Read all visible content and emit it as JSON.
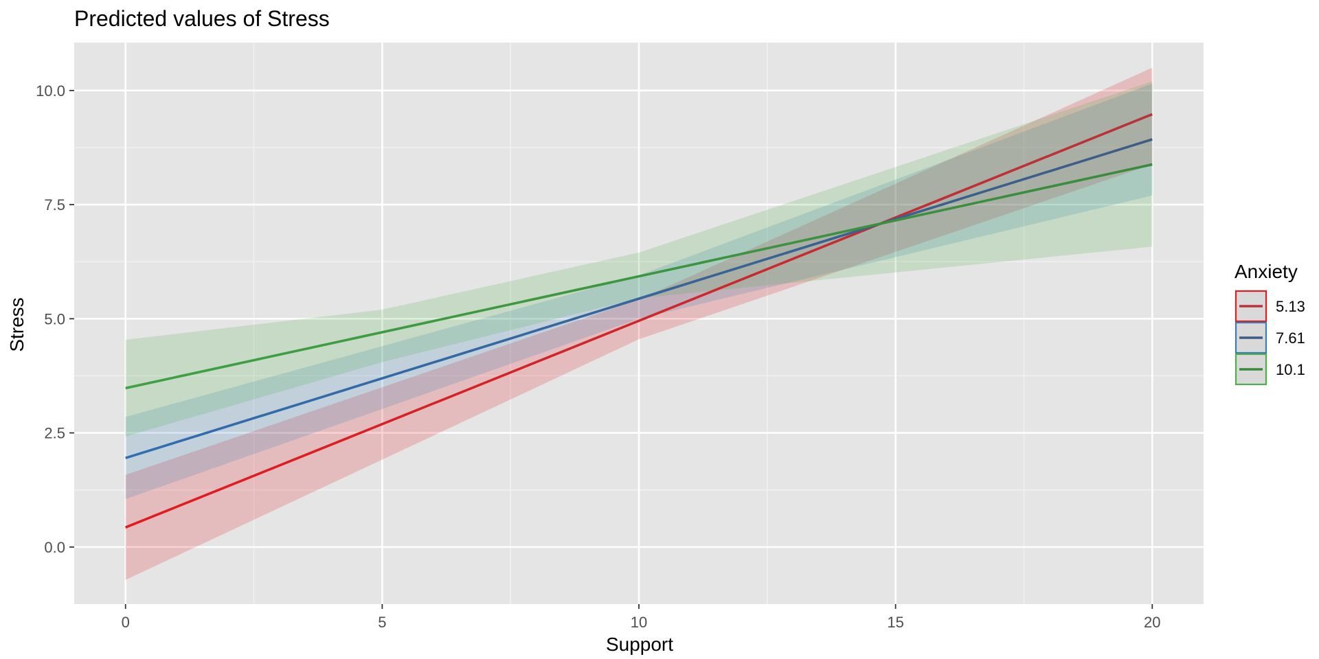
{
  "chart_data": {
    "type": "line",
    "title": "Predicted values of Stress",
    "xlabel": "Support",
    "ylabel": "Stress",
    "xlim": [
      -1,
      21
    ],
    "ylim": [
      -1.25,
      11.05
    ],
    "x_ticks": [
      0,
      5,
      10,
      15,
      20
    ],
    "x_tick_labels": [
      "0",
      "5",
      "10",
      "15",
      "20"
    ],
    "y_ticks": [
      0,
      2.5,
      5,
      7.5,
      10
    ],
    "y_tick_labels": [
      "0.0",
      "2.5",
      "5.0",
      "7.5",
      "10.0"
    ],
    "grid": true,
    "legend": {
      "title": "Anxiety",
      "position": "right"
    },
    "series": [
      {
        "name": "5.13",
        "color": "#e41a1c",
        "line_color_start": "#e41a1c",
        "line_color_end": "#b8333a",
        "x": [
          0,
          20
        ],
        "y": [
          0.43,
          9.48
        ],
        "ci_lower": [
          -0.72,
          8.38
        ],
        "ci_upper": [
          1.58,
          10.5
        ],
        "ci_x": [
          0,
          10,
          20
        ],
        "ci_lower_full": [
          -0.72,
          4.55,
          8.38
        ],
        "ci_upper_full": [
          1.58,
          5.42,
          10.5
        ]
      },
      {
        "name": "7.61",
        "color": "#377eb8",
        "line_color_start": "#2f6eb0",
        "line_color_end": "#3d5d85",
        "x": [
          0,
          20
        ],
        "y": [
          1.95,
          8.93
        ],
        "ci_x": [
          0,
          10,
          20
        ],
        "ci_lower_full": [
          1.05,
          5.0,
          7.7
        ],
        "ci_upper_full": [
          2.85,
          5.95,
          10.15
        ]
      },
      {
        "name": "10.1",
        "color": "#4daf4a",
        "line_color_start": "#3fa142",
        "line_color_end": "#3a8a3e",
        "x": [
          0,
          20
        ],
        "y": [
          3.48,
          8.38
        ],
        "ci_x": [
          0,
          5,
          10,
          20
        ],
        "ci_lower_full": [
          2.42,
          4.05,
          5.45,
          6.58
        ],
        "ci_upper_full": [
          4.54,
          5.2,
          6.45,
          10.2
        ]
      }
    ]
  }
}
